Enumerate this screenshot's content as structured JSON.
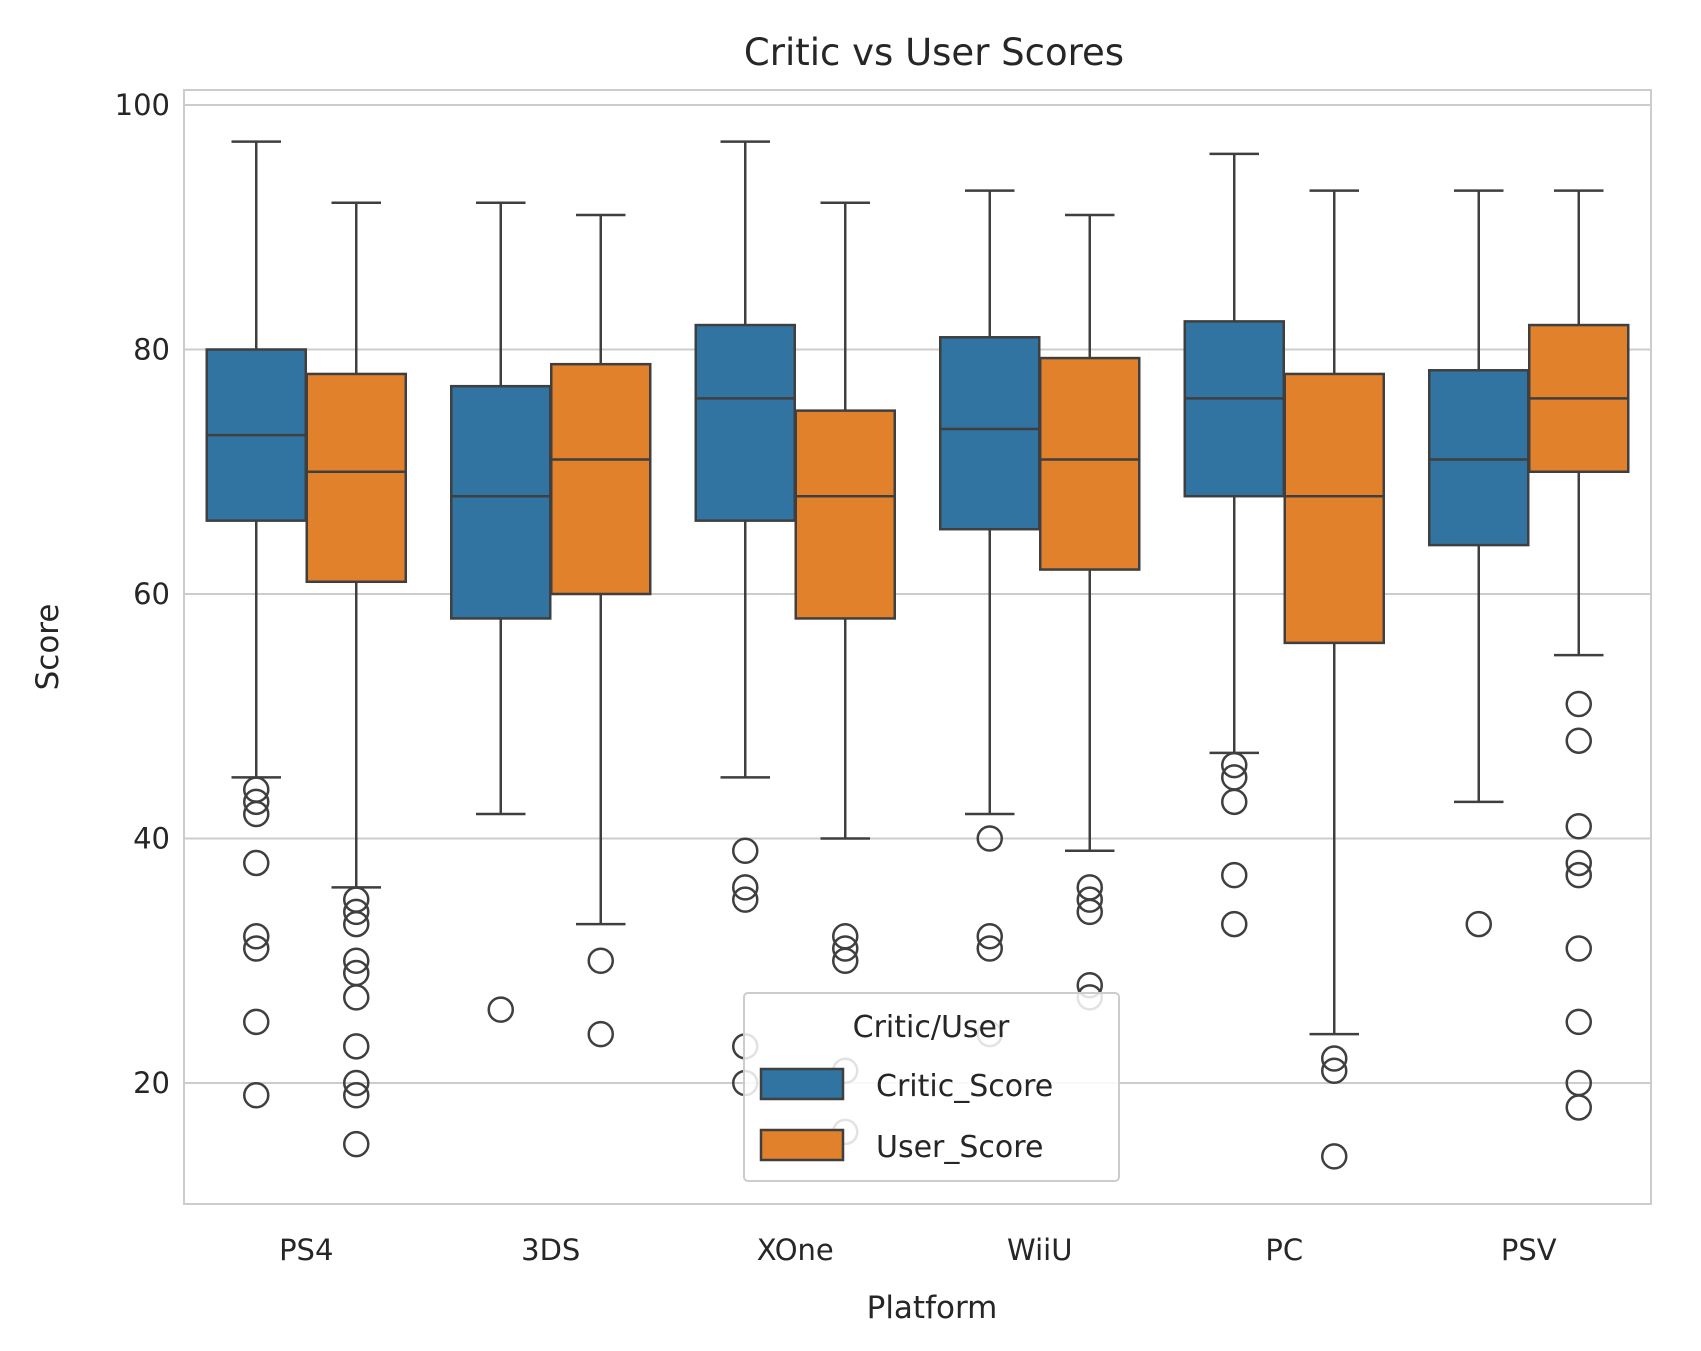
{
  "chart_data": {
    "type": "boxplot",
    "title": "Critic vs User Scores",
    "xlabel": "Platform",
    "ylabel": "Score",
    "categories": [
      "PS4",
      "3DS",
      "XOne",
      "WiiU",
      "PC",
      "PSV"
    ],
    "yticks": [
      20,
      40,
      60,
      80,
      100
    ],
    "ylim": [
      10,
      101
    ],
    "grid": true,
    "legend": {
      "title": "Critic/User",
      "placement": "lower-center"
    },
    "series": [
      {
        "name": "Critic_Score",
        "color": "#3274a1",
        "boxes": [
          {
            "whisker_low": 45,
            "q1": 66,
            "median": 73,
            "q3": 80,
            "whisker_high": 97,
            "outliers": [
              44,
              43,
              42,
              38,
              32,
              31,
              25,
              19
            ]
          },
          {
            "whisker_low": 42,
            "q1": 58,
            "median": 68,
            "q3": 77,
            "whisker_high": 92,
            "outliers": [
              26
            ]
          },
          {
            "whisker_low": 45,
            "q1": 66,
            "median": 76,
            "q3": 82,
            "whisker_high": 97,
            "outliers": [
              39,
              36,
              35,
              23,
              20
            ]
          },
          {
            "whisker_low": 42,
            "q1": 65.3,
            "median": 73.5,
            "q3": 81,
            "whisker_high": 93,
            "outliers": [
              40,
              32,
              31,
              24
            ]
          },
          {
            "whisker_low": 47,
            "q1": 68,
            "median": 76,
            "q3": 82.3,
            "whisker_high": 96,
            "outliers": [
              46,
              45,
              43,
              37,
              33
            ]
          },
          {
            "whisker_low": 43,
            "q1": 64,
            "median": 71,
            "q3": 78.3,
            "whisker_high": 93,
            "outliers": [
              33
            ]
          }
        ]
      },
      {
        "name": "User_Score",
        "color": "#e1812c",
        "boxes": [
          {
            "whisker_low": 36,
            "q1": 61,
            "median": 70,
            "q3": 78,
            "whisker_high": 92,
            "outliers": [
              35,
              34,
              33,
              30,
              29,
              27,
              23,
              20,
              19,
              15
            ]
          },
          {
            "whisker_low": 33,
            "q1": 60,
            "median": 71,
            "q3": 78.8,
            "whisker_high": 91,
            "outliers": [
              30,
              24
            ]
          },
          {
            "whisker_low": 40,
            "q1": 58,
            "median": 68,
            "q3": 75,
            "whisker_high": 92,
            "outliers": [
              32,
              31,
              30,
              21,
              16
            ]
          },
          {
            "whisker_low": 39,
            "q1": 62,
            "median": 71,
            "q3": 79.3,
            "whisker_high": 91,
            "outliers": [
              36,
              35,
              34,
              28,
              27
            ]
          },
          {
            "whisker_low": 24,
            "q1": 56,
            "median": 68,
            "q3": 78,
            "whisker_high": 93,
            "outliers": [
              22,
              21,
              14
            ]
          },
          {
            "whisker_low": 55,
            "q1": 70,
            "median": 76,
            "q3": 82,
            "whisker_high": 93,
            "outliers": [
              51,
              48,
              41,
              38,
              37,
              31,
              25,
              20,
              18
            ]
          }
        ]
      }
    ]
  }
}
